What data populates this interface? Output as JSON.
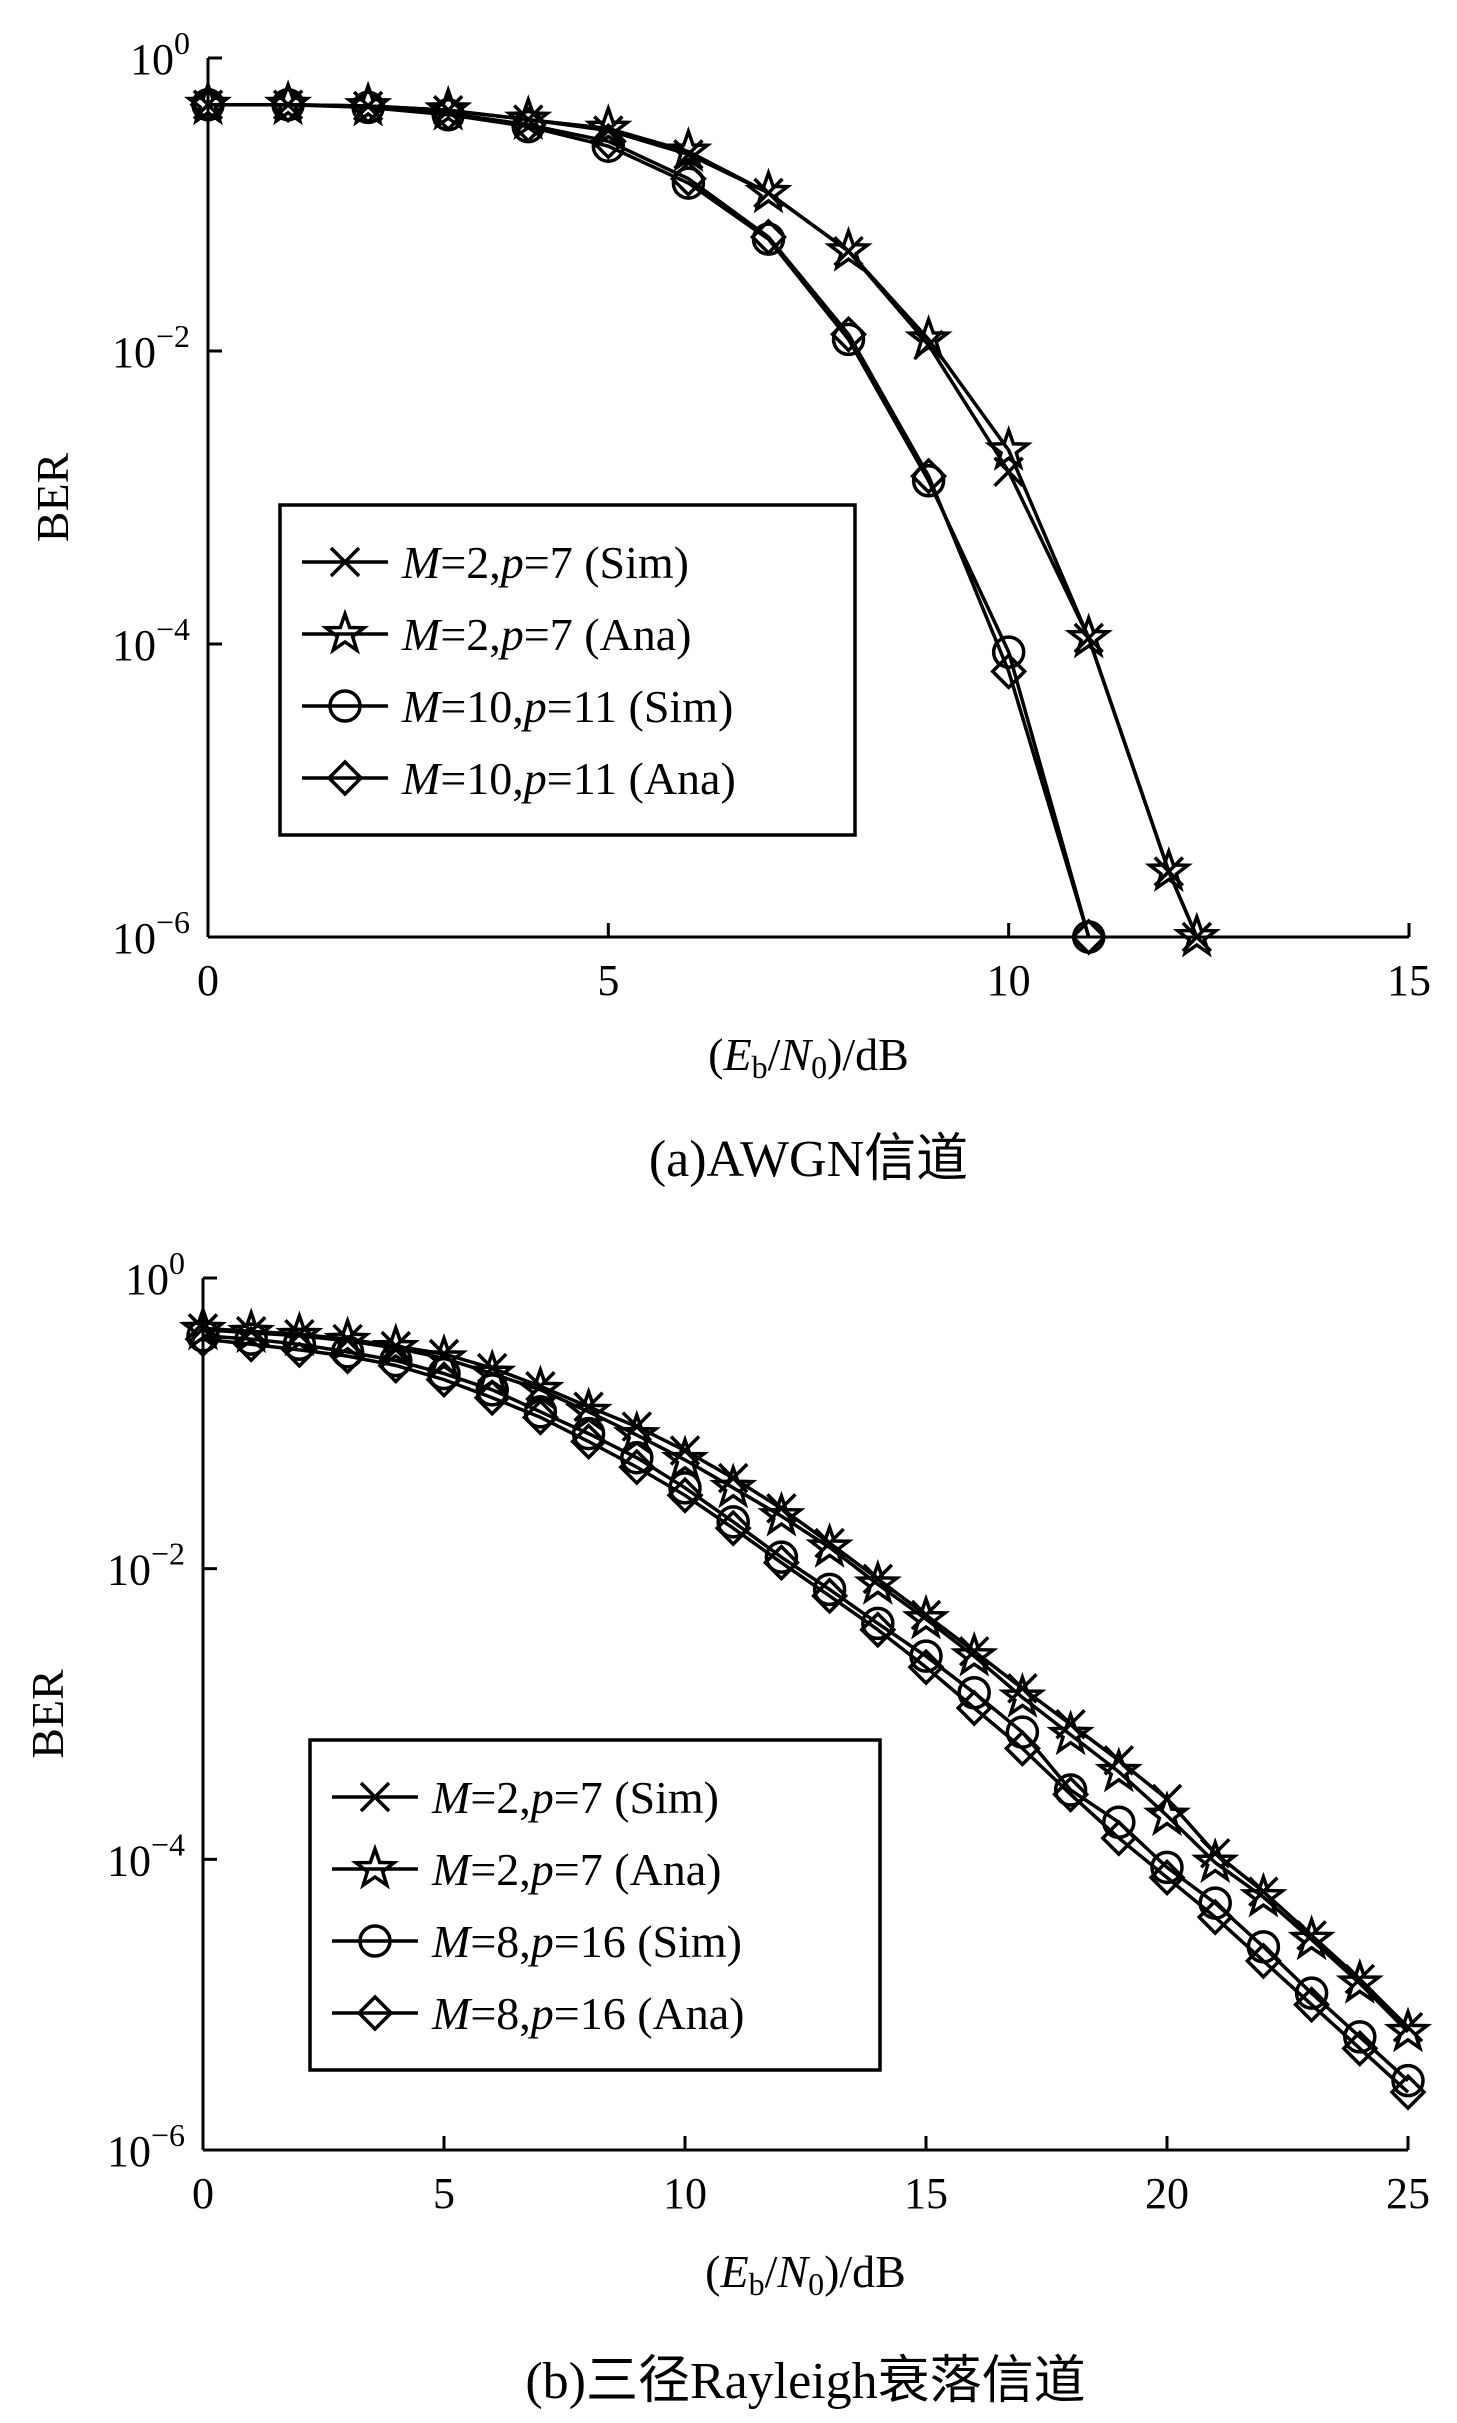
{
  "chart_data": [
    {
      "type": "line",
      "caption": "(a)AWGN信道",
      "xlabel": "(Eb/N0)/dB",
      "ylabel": "BER",
      "xlim": [
        0,
        15
      ],
      "ylim": [
        1e-06,
        1
      ],
      "yscale": "log",
      "xticks": [
        "0",
        "5",
        "10",
        "15"
      ],
      "yticks": [
        {
          "base": "10",
          "exp": "0",
          "value": 1
        },
        {
          "base": "10",
          "exp": "−2",
          "value": 0.01
        },
        {
          "base": "10",
          "exp": "−4",
          "value": 0.0001
        },
        {
          "base": "10",
          "exp": "−6",
          "value": 1e-06
        }
      ],
      "grid": false,
      "legend_position": "bottom-left",
      "series": [
        {
          "name": "M=2,p=7 (Sim)",
          "mpart": "M",
          "eq1": "=2,",
          "ppart": "p",
          "eq2": "=7 (Sim)",
          "marker": "x",
          "x": [
            0,
            1,
            2,
            3,
            4,
            5,
            6,
            7,
            8,
            9,
            10,
            11,
            12,
            12.35
          ],
          "y": [
            0.48,
            0.48,
            0.47,
            0.44,
            0.38,
            0.32,
            0.22,
            0.12,
            0.048,
            0.011,
            0.0015,
            0.00011,
            2.8e-06,
            1e-06
          ]
        },
        {
          "name": "M=2,p=7 (Ana)",
          "mpart": "M",
          "eq1": "=2,",
          "ppart": "p",
          "eq2": "=7 (Ana)",
          "marker": "star",
          "x": [
            0,
            1,
            2,
            3,
            4,
            5,
            6,
            7,
            8,
            9,
            10,
            11,
            12,
            12.35
          ],
          "y": [
            0.48,
            0.48,
            0.47,
            0.44,
            0.38,
            0.33,
            0.23,
            0.12,
            0.048,
            0.012,
            0.0021,
            0.00011,
            2.8e-06,
            1e-06
          ]
        },
        {
          "name": "M=10,p=11 (Sim)",
          "mpart": "M",
          "eq1": "=10,",
          "ppart": "p",
          "eq2": "=11 (Sim)",
          "marker": "circle",
          "x": [
            0,
            1,
            2,
            3,
            4,
            5,
            6,
            7,
            8,
            9,
            10,
            11
          ],
          "y": [
            0.48,
            0.48,
            0.46,
            0.41,
            0.34,
            0.25,
            0.14,
            0.058,
            0.012,
            0.0013,
            8.8e-05,
            1e-06
          ]
        },
        {
          "name": "M=10,p=11 (Ana)",
          "mpart": "M",
          "eq1": "=10,",
          "ppart": "p",
          "eq2": "=11 (Ana)",
          "marker": "diamond",
          "x": [
            0,
            1,
            2,
            3,
            4,
            5,
            6,
            7,
            8,
            9,
            10,
            11
          ],
          "y": [
            0.48,
            0.48,
            0.47,
            0.42,
            0.35,
            0.27,
            0.15,
            0.06,
            0.013,
            0.0014,
            6.5e-05,
            1e-06
          ]
        }
      ]
    },
    {
      "type": "line",
      "caption": "(b)三径Rayleigh衰落信道",
      "xlabel": "(Eb/N0)/dB",
      "ylabel": "BER",
      "xlim": [
        0,
        25
      ],
      "ylim": [
        1e-06,
        1
      ],
      "yscale": "log",
      "xticks": [
        "0",
        "5",
        "10",
        "15",
        "20",
        "25"
      ],
      "yticks": [
        {
          "base": "10",
          "exp": "0",
          "value": 1
        },
        {
          "base": "10",
          "exp": "−2",
          "value": 0.01
        },
        {
          "base": "10",
          "exp": "−4",
          "value": 0.0001
        },
        {
          "base": "10",
          "exp": "−6",
          "value": 1e-06
        }
      ],
      "grid": false,
      "legend_position": "bottom-left",
      "series": [
        {
          "name": "M=2,p=7 (Sim)",
          "mpart": "M",
          "eq1": "=2,",
          "ppart": "p",
          "eq2": "=7 (Sim)",
          "marker": "x",
          "x": [
            0,
            1,
            2,
            3,
            4,
            5,
            6,
            7,
            8,
            9,
            10,
            11,
            12,
            13,
            14,
            15,
            16,
            17,
            18,
            19,
            20,
            21,
            22,
            23,
            24,
            25
          ],
          "y": [
            0.45,
            0.43,
            0.41,
            0.38,
            0.34,
            0.3,
            0.24,
            0.18,
            0.13,
            0.095,
            0.065,
            0.042,
            0.026,
            0.015,
            0.0085,
            0.0048,
            0.0027,
            0.0015,
            0.00085,
            0.00048,
            0.00026,
            0.00011,
            6e-05,
            3e-05,
            1.5e-05,
            7e-06
          ]
        },
        {
          "name": "M=2,p=7 (Ana)",
          "mpart": "M",
          "eq1": "=2,",
          "ppart": "p",
          "eq2": "=7 (Ana)",
          "marker": "star",
          "x": [
            0,
            1,
            2,
            3,
            4,
            5,
            6,
            7,
            8,
            9,
            10,
            11,
            12,
            13,
            14,
            15,
            16,
            17,
            18,
            19,
            20,
            21,
            22,
            23,
            24,
            25
          ],
          "y": [
            0.44,
            0.42,
            0.4,
            0.37,
            0.33,
            0.28,
            0.22,
            0.17,
            0.12,
            0.083,
            0.056,
            0.036,
            0.023,
            0.014,
            0.0078,
            0.0045,
            0.0025,
            0.0013,
            0.00072,
            0.0004,
            0.0002,
            9.5e-05,
            5.5e-05,
            2.8e-05,
            1.4e-05,
            6.5e-06
          ]
        },
        {
          "name": "M=8,p=16 (Sim)",
          "mpart": "M",
          "eq1": "=8,",
          "ppart": "p",
          "eq2": "=16 (Sim)",
          "marker": "circle",
          "x": [
            0,
            1,
            2,
            3,
            4,
            5,
            6,
            7,
            8,
            9,
            10,
            11,
            12,
            13,
            14,
            15,
            16,
            17,
            18,
            19,
            20,
            21,
            22,
            23,
            24,
            25
          ],
          "y": [
            0.4,
            0.38,
            0.35,
            0.31,
            0.27,
            0.22,
            0.17,
            0.12,
            0.085,
            0.058,
            0.036,
            0.021,
            0.012,
            0.0072,
            0.0042,
            0.0025,
            0.0014,
            0.00075,
            0.0003,
            0.00018,
            8.8e-05,
            5e-05,
            2.5e-05,
            1.2e-05,
            6e-06,
            3e-06
          ]
        },
        {
          "name": "M=8,p=16 (Ana)",
          "mpart": "M",
          "eq1": "=8,",
          "ppart": "p",
          "eq2": "=16 (Ana)",
          "marker": "diamond",
          "x": [
            0,
            1,
            2,
            3,
            4,
            5,
            6,
            7,
            8,
            9,
            10,
            11,
            12,
            13,
            14,
            15,
            16,
            17,
            18,
            19,
            20,
            21,
            22,
            23,
            24,
            25
          ],
          "y": [
            0.38,
            0.35,
            0.32,
            0.29,
            0.25,
            0.2,
            0.15,
            0.11,
            0.075,
            0.05,
            0.032,
            0.019,
            0.011,
            0.0065,
            0.0038,
            0.0021,
            0.0011,
            0.00058,
            0.00028,
            0.00014,
            7.5e-05,
            4e-05,
            2e-05,
            1e-05,
            5e-06,
            2.5e-06
          ]
        }
      ]
    }
  ]
}
